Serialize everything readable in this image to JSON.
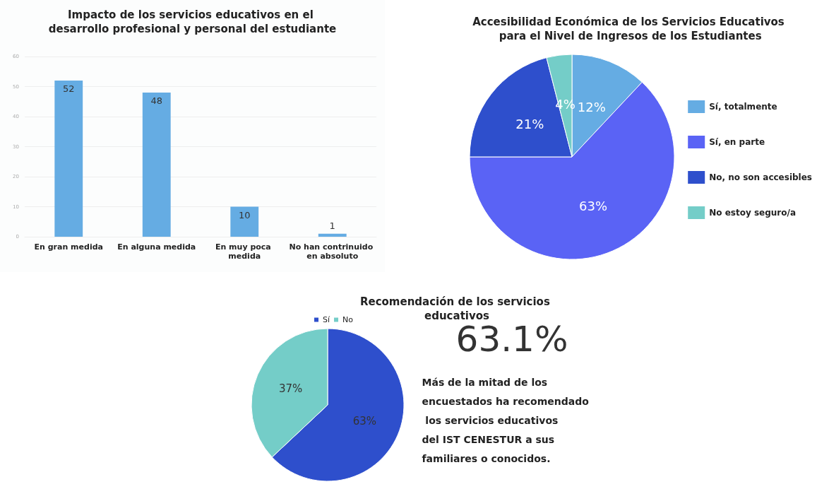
{
  "chart_data": [
    {
      "type": "bar",
      "title": "Impacto de los servicios educativos en el desarrollo profesional y personal del estudiante",
      "categories": [
        "En gran medida",
        "En alguna medida",
        "En muy poca medida",
        "No han contrinuido en absoluto"
      ],
      "values": [
        52,
        48,
        10,
        1
      ],
      "color": "#65ace3",
      "ylim": [
        0,
        60
      ],
      "yticks": [
        0,
        10,
        20,
        30,
        40,
        50,
        60
      ],
      "grid": "y",
      "data_labels": true,
      "legend": false
    },
    {
      "type": "pie",
      "title": "Accesibilidad Económica de los Servicios Educativos para el Nivel de Ingresos de los Estudiantes",
      "categories": [
        "Sí, totalmente",
        "Sí, en parte",
        "No, no son accesibles",
        "No estoy seguro/a"
      ],
      "values": [
        12,
        63,
        21,
        4
      ],
      "colors": [
        "#65ace3",
        "#5a63f5",
        "#2e4fcc",
        "#74cdc8"
      ],
      "value_labels": [
        "12%",
        "63%",
        "21%",
        "4%"
      ],
      "legend": "right"
    },
    {
      "type": "pie",
      "title": "Recomendación de los servicios educativos",
      "categories": [
        "Sí",
        "No"
      ],
      "values": [
        63,
        37
      ],
      "colors": [
        "#2e4fcc",
        "#74cdc8"
      ],
      "value_labels": [
        "63%",
        "37%"
      ],
      "legend": "top"
    },
    {
      "type": "other",
      "title": "63.1%",
      "annotations": [
        "Más de la mitad de los encuestados ha recomendado los servicios educativos del IST CENESTUR a sus familiares o conocidos."
      ]
    }
  ]
}
